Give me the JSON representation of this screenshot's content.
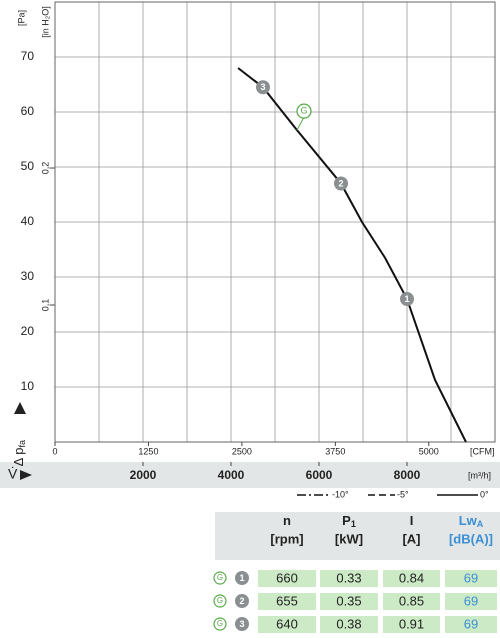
{
  "chart_data": {
    "type": "line",
    "y_label": "Δ p",
    "y_label_sub": "fa",
    "y_unit": "[Pa]",
    "y2_unit": "[in H₂O]",
    "x_label": "V̇",
    "x_unit": "[m³/h]",
    "x2_unit": "[CFM]",
    "ylim": [
      0,
      80
    ],
    "yticks": [
      10,
      20,
      30,
      40,
      50,
      60,
      70
    ],
    "y2lim": [
      0,
      0.3212
    ],
    "y2ticks": [
      {
        "value": 0.1,
        "label": "0,1"
      },
      {
        "value": 0.2,
        "label": "0,2"
      }
    ],
    "xlim": [
      0,
      10000
    ],
    "xticks": [
      2000,
      4000,
      6000,
      8000
    ],
    "x2lim": [
      0,
      5886
    ],
    "x2ticks": [
      0,
      1250,
      2500,
      3750,
      5000
    ],
    "grid": true,
    "series": [
      {
        "name": "0°",
        "color": "#111111",
        "x": [
          4160,
          4727,
          5500,
          6500,
          6977,
          7500,
          8000,
          8636,
          9340
        ],
        "values": [
          68,
          64.5,
          56.7,
          47,
          40,
          33.5,
          26,
          11.3,
          0
        ]
      }
    ],
    "legend": [
      {
        "label": "-10°",
        "dash": "9 3 2 3"
      },
      {
        "label": "-5°",
        "dash": "7 4"
      },
      {
        "label": "0°",
        "dash": "none"
      }
    ],
    "points": [
      {
        "label": "1",
        "x": 8000,
        "y": 26
      },
      {
        "label": "2",
        "x": 6500,
        "y": 47
      },
      {
        "label": "3",
        "x": 4727,
        "y": 64.5
      }
    ],
    "annotation": {
      "label": "G",
      "x": 5500,
      "y": 56.7
    }
  },
  "table": {
    "headers": [
      {
        "name": "n",
        "unit": "[rpm]"
      },
      {
        "name": "P",
        "sub": "1",
        "unit": "[kW]"
      },
      {
        "name": "I",
        "unit": "[A]"
      },
      {
        "name": "Lw",
        "sub": "A",
        "unit": "[dB(A)]"
      }
    ],
    "rows": [
      {
        "curve": "G",
        "point": "1",
        "values": [
          660,
          0.33,
          0.84,
          69
        ]
      },
      {
        "curve": "G",
        "point": "2",
        "values": [
          655,
          0.35,
          0.85,
          69
        ]
      },
      {
        "curve": "G",
        "point": "3",
        "values": [
          640,
          0.38,
          0.91,
          69
        ]
      }
    ]
  }
}
